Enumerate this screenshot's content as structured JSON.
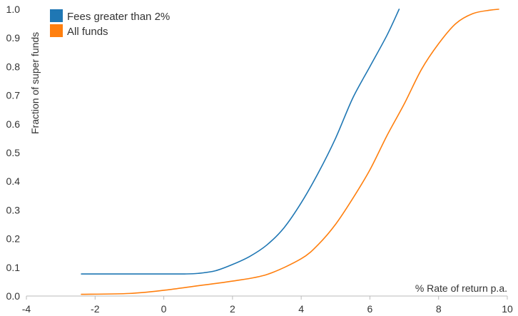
{
  "chart_data": {
    "type": "line",
    "title": "",
    "xlabel": "% Rate of return p.a.",
    "ylabel": "Fraction of super funds",
    "xlim": [
      -4,
      10
    ],
    "ylim": [
      0,
      1
    ],
    "xticks": [
      "-4",
      "-2",
      "0",
      "2",
      "4",
      "6",
      "8",
      "10"
    ],
    "yticks": [
      "0.0",
      "0.1",
      "0.2",
      "0.3",
      "0.4",
      "0.5",
      "0.6",
      "0.7",
      "0.8",
      "0.9",
      "1.0"
    ],
    "grid": false,
    "legend_position": "top-left",
    "series": [
      {
        "name": "Fees greater than 2%",
        "color": "#1f77b4",
        "x": [
          -2.4,
          -1.0,
          0.0,
          0.6,
          1.0,
          1.5,
          2.0,
          2.5,
          3.0,
          3.5,
          4.0,
          4.5,
          5.0,
          5.5,
          6.0,
          6.5,
          6.85
        ],
        "y": [
          0.077,
          0.077,
          0.077,
          0.077,
          0.079,
          0.088,
          0.11,
          0.138,
          0.178,
          0.238,
          0.325,
          0.43,
          0.55,
          0.69,
          0.8,
          0.91,
          1.0
        ]
      },
      {
        "name": "All funds",
        "color": "#ff7f0e",
        "x": [
          -2.4,
          -1.0,
          0.0,
          1.0,
          2.0,
          3.0,
          4.0,
          4.5,
          5.0,
          5.5,
          6.0,
          6.5,
          7.0,
          7.5,
          8.0,
          8.5,
          9.0,
          9.5,
          9.75
        ],
        "y": [
          0.006,
          0.009,
          0.02,
          0.036,
          0.052,
          0.075,
          0.13,
          0.18,
          0.25,
          0.34,
          0.44,
          0.56,
          0.67,
          0.79,
          0.88,
          0.95,
          0.985,
          0.997,
          1.0
        ]
      }
    ]
  }
}
